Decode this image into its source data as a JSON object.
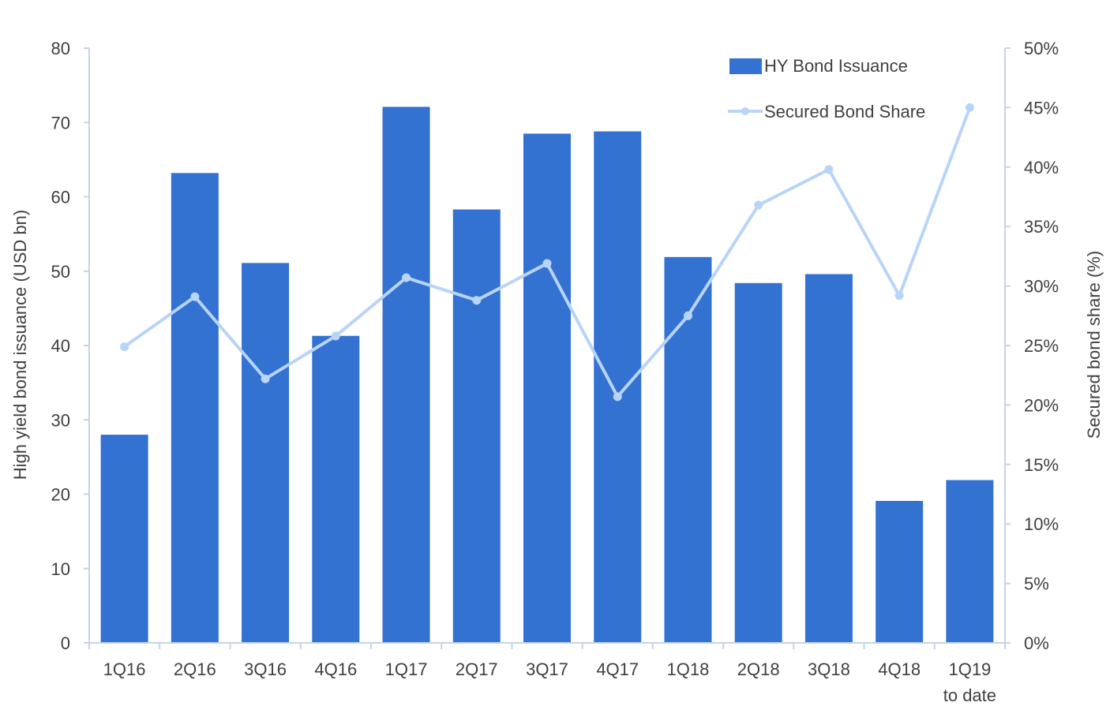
{
  "chart_data": {
    "type": "bar",
    "categories": [
      "1Q16",
      "2Q16",
      "3Q16",
      "4Q16",
      "1Q17",
      "2Q17",
      "3Q17",
      "4Q17",
      "1Q18",
      "2Q18",
      "3Q18",
      "4Q18",
      [
        "1Q19",
        "to date"
      ]
    ],
    "ylabel": "High yield bond issuance (USD bn)",
    "y2label": "Secured bond share (%)",
    "ylim": [
      0,
      80
    ],
    "y2lim": [
      0,
      50
    ],
    "yticks": [
      "0",
      "10",
      "20",
      "30",
      "40",
      "50",
      "60",
      "70",
      "80"
    ],
    "y2ticks": [
      "0%",
      "5%",
      "10%",
      "15%",
      "20%",
      "25%",
      "30%",
      "35%",
      "40%",
      "45%",
      "50%"
    ],
    "grid": false,
    "legend_position": "top-right",
    "series": [
      {
        "name": "HY Bond Issuance",
        "type": "bar",
        "axis": "left",
        "color": "#3372d1",
        "values": [
          28,
          63.2,
          51.1,
          41.3,
          72.1,
          58.3,
          68.5,
          68.8,
          51.9,
          48.4,
          49.6,
          19.1,
          21.9
        ]
      },
      {
        "name": "Secured Bond Share",
        "type": "line",
        "axis": "right",
        "color": "#b8d4f7",
        "values": [
          24.9,
          29.1,
          22.2,
          25.8,
          30.7,
          28.8,
          31.9,
          20.7,
          27.5,
          36.8,
          39.8,
          29.2,
          45
        ]
      }
    ]
  }
}
